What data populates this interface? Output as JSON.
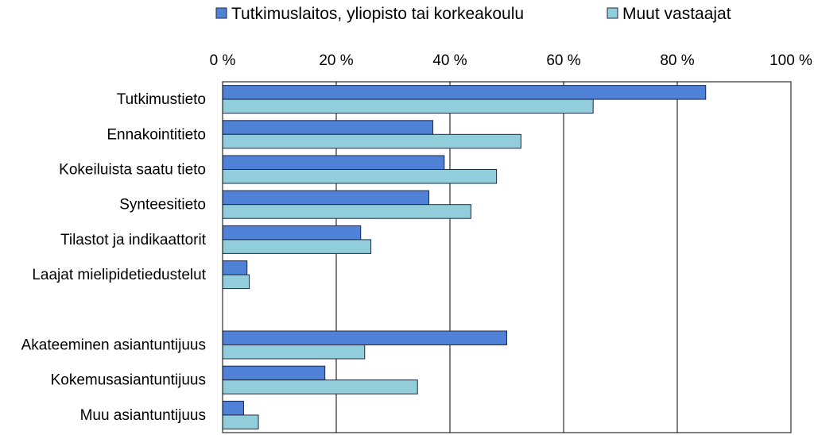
{
  "chart_data": {
    "type": "bar",
    "orientation": "horizontal",
    "title": "",
    "xlabel": "",
    "ylabel": "",
    "xlim": [
      0,
      100
    ],
    "x_axis_position": "top",
    "x_ticks": [
      "0 %",
      "20 %",
      "40 %",
      "60 %",
      "80 %",
      "100 %"
    ],
    "grid": "vertical",
    "legend": "top",
    "categories": [
      "Tutkimustieto",
      "Ennakointitieto",
      "Kokeiluista saatu tieto",
      "Synteesitieto",
      "Tilastot ja indikaattorit",
      "Laajat mielipidetiedustelut",
      "",
      "Akateeminen asiantuntijuus",
      "Kokemusasiantuntijuus",
      "Muu asiantuntijuus"
    ],
    "series": [
      {
        "name": "Tutkimuslaitos, yliopisto tai korkeakoulu",
        "color": "#4f81d6",
        "values": [
          85,
          37,
          39,
          36.3,
          24.3,
          4.3,
          null,
          50,
          18,
          3.7
        ]
      },
      {
        "name": "Muut vastaajat",
        "color": "#92cddc",
        "values": [
          65.2,
          52.5,
          48.2,
          43.7,
          26.1,
          4.7,
          null,
          25,
          34.3,
          6.3
        ]
      }
    ]
  }
}
